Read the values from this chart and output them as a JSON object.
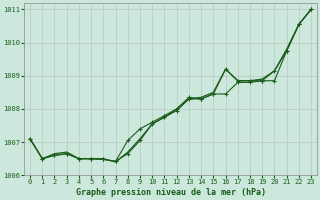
{
  "title": "Graphe pression niveau de la mer (hPa)",
  "bg_color": "#cce8dc",
  "grid_color": "#b8c8c0",
  "line_color": "#1a5c1a",
  "x_values": [
    0,
    1,
    2,
    3,
    4,
    5,
    6,
    7,
    8,
    9,
    10,
    11,
    12,
    13,
    14,
    15,
    16,
    17,
    18,
    19,
    20,
    21,
    22,
    23
  ],
  "line_smooth": [
    1007.1,
    1006.5,
    1006.65,
    1006.7,
    1006.5,
    1006.5,
    1006.5,
    1006.4,
    1006.7,
    1007.1,
    1007.55,
    1007.75,
    1008.0,
    1008.3,
    1008.35,
    1008.5,
    1009.2,
    1008.85,
    1008.85,
    1008.9,
    1009.15,
    1009.8,
    1010.55,
    1011.0
  ],
  "line_markers1": [
    1007.1,
    1006.5,
    1006.6,
    1006.65,
    1006.5,
    1006.5,
    1006.48,
    1006.42,
    1006.65,
    1007.05,
    1007.55,
    1007.75,
    1007.95,
    1008.3,
    1008.3,
    1008.45,
    1008.45,
    1008.8,
    1008.8,
    1008.85,
    1008.85,
    1009.75,
    1010.55,
    1011.0
  ],
  "line_markers2": [
    1007.1,
    1006.5,
    1006.6,
    1006.65,
    1006.5,
    1006.5,
    1006.48,
    1006.42,
    1007.05,
    1007.4,
    1007.6,
    1007.8,
    1008.0,
    1008.35,
    1008.3,
    1008.45,
    1009.2,
    1008.85,
    1008.85,
    1008.85,
    1009.15,
    1009.75,
    1010.55,
    1011.0
  ],
  "ylim": [
    1006.0,
    1011.2
  ],
  "xlim": [
    -0.5,
    23.5
  ],
  "yticks": [
    1006,
    1007,
    1008,
    1009,
    1010,
    1011
  ],
  "xticks": [
    0,
    1,
    2,
    3,
    4,
    5,
    6,
    7,
    8,
    9,
    10,
    11,
    12,
    13,
    14,
    15,
    16,
    17,
    18,
    19,
    20,
    21,
    22,
    23
  ]
}
